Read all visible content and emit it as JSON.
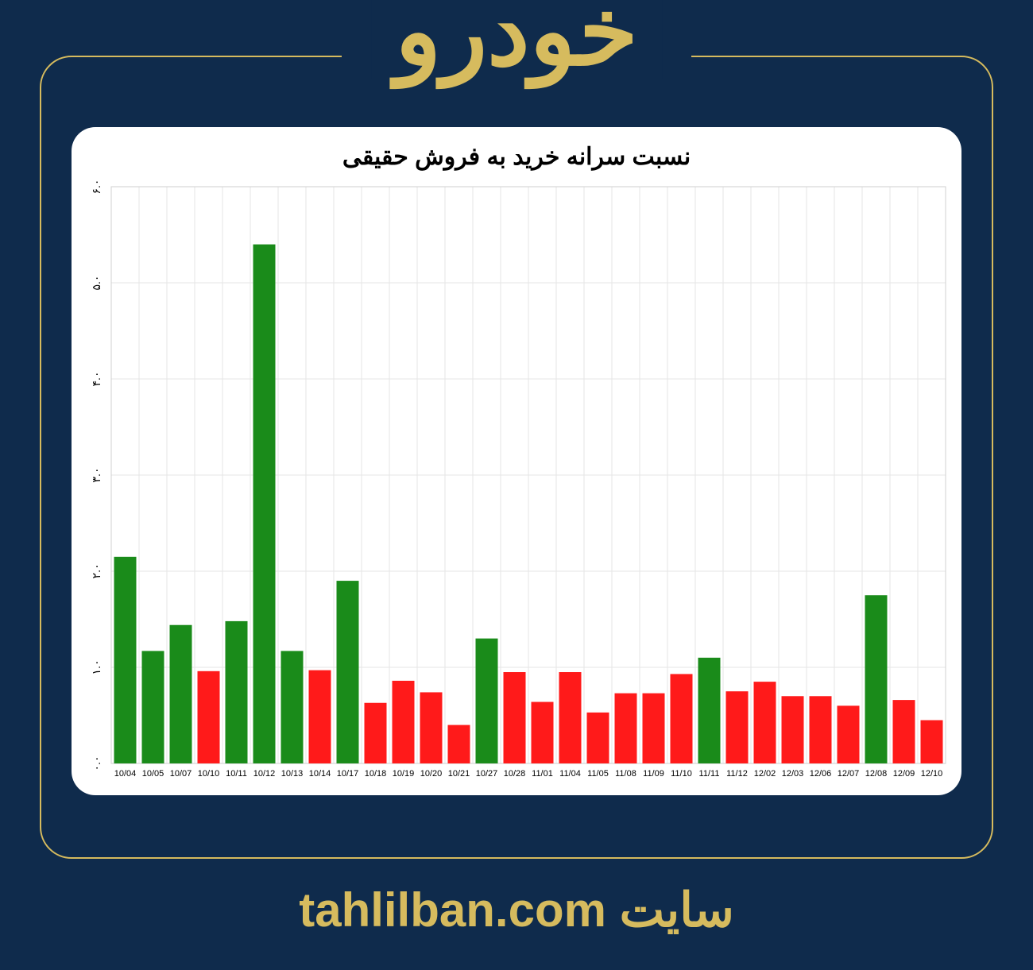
{
  "header": {
    "title": "خودرو"
  },
  "footer": {
    "text": "سایت tahlilban.com"
  },
  "chart": {
    "type": "bar",
    "title": "نسبت سرانه خرید به فروش حقیقی",
    "title_fontsize": 30,
    "background_color": "#ffffff",
    "grid_color": "#e6e6e6",
    "plot_border_color": "#d0d0d0",
    "ylim": [
      0.0,
      6.0
    ],
    "ytick_step": 1.0,
    "ytick_labels": [
      "۰.۰",
      "۱.۰",
      "۲.۰",
      "۳.۰",
      "۴.۰",
      "۵.۰",
      "۶.۰"
    ],
    "ytick_fontsize": 14,
    "xtick_fontsize": 11,
    "bar_width_ratio": 0.8,
    "colors": {
      "green": "#1a8b1a",
      "red": "#ff1a1a"
    },
    "categories": [
      "10/04",
      "10/05",
      "10/07",
      "10/10",
      "10/11",
      "10/12",
      "10/13",
      "10/14",
      "10/17",
      "10/18",
      "10/19",
      "10/20",
      "10/21",
      "10/27",
      "10/28",
      "11/01",
      "11/04",
      "11/05",
      "11/08",
      "11/09",
      "11/10",
      "11/11",
      "11/12",
      "12/02",
      "12/03",
      "12/06",
      "12/07",
      "12/08",
      "12/09",
      "12/10"
    ],
    "values": [
      2.15,
      1.17,
      1.44,
      0.96,
      1.48,
      5.4,
      1.17,
      0.97,
      1.9,
      0.63,
      0.86,
      0.74,
      0.4,
      1.3,
      0.95,
      0.64,
      0.95,
      0.53,
      0.73,
      0.73,
      0.93,
      1.1,
      0.75,
      0.85,
      0.7,
      0.7,
      0.6,
      1.75,
      0.66,
      0.45
    ],
    "bar_colors": [
      "#1a8b1a",
      "#1a8b1a",
      "#1a8b1a",
      "#ff1a1a",
      "#1a8b1a",
      "#1a8b1a",
      "#1a8b1a",
      "#ff1a1a",
      "#1a8b1a",
      "#ff1a1a",
      "#ff1a1a",
      "#ff1a1a",
      "#ff1a1a",
      "#1a8b1a",
      "#ff1a1a",
      "#ff1a1a",
      "#ff1a1a",
      "#ff1a1a",
      "#ff1a1a",
      "#ff1a1a",
      "#ff1a1a",
      "#1a8b1a",
      "#ff1a1a",
      "#ff1a1a",
      "#ff1a1a",
      "#ff1a1a",
      "#ff1a1a",
      "#1a8b1a",
      "#ff1a1a",
      "#ff1a1a"
    ]
  },
  "page": {
    "background_color": "#0f2b4c",
    "accent_color": "#d6bb5e"
  }
}
